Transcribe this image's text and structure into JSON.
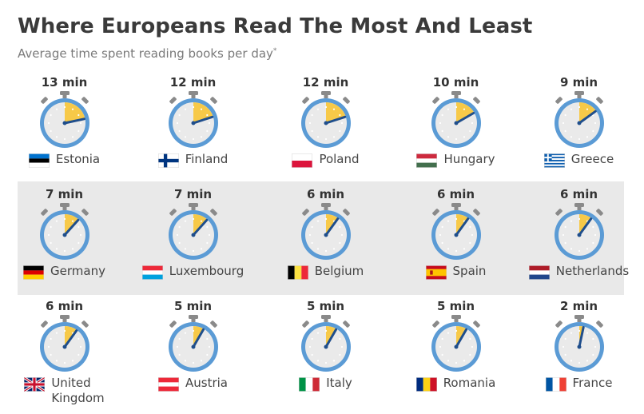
{
  "header": {
    "title": "Where Europeans Read The Most And Least",
    "subtitle": "Average time spent reading books per day",
    "footnote_mark": "*"
  },
  "colors": {
    "watch_ring": "#5b9bd5",
    "watch_face": "#eaeaea",
    "wedge": "#f7c948",
    "hand": "#1f4e8c",
    "band": "#e9e9e9"
  },
  "chart_data": {
    "type": "table",
    "title": "Where Europeans Read The Most And Least",
    "subtitle": "Average time spent reading books per day",
    "unit": "min",
    "rows": [
      {
        "country": "Estonia",
        "minutes": 13,
        "label": "13 min"
      },
      {
        "country": "Finland",
        "minutes": 12,
        "label": "12 min"
      },
      {
        "country": "Poland",
        "minutes": 12,
        "label": "12 min"
      },
      {
        "country": "Hungary",
        "minutes": 10,
        "label": "10 min"
      },
      {
        "country": "Greece",
        "minutes": 9,
        "label": "9 min"
      },
      {
        "country": "Germany",
        "minutes": 7,
        "label": "7 min"
      },
      {
        "country": "Luxembourg",
        "minutes": 7,
        "label": "7 min"
      },
      {
        "country": "Belgium",
        "minutes": 6,
        "label": "6 min"
      },
      {
        "country": "Spain",
        "minutes": 6,
        "label": "6 min"
      },
      {
        "country": "Netherlands",
        "minutes": 6,
        "label": "6 min"
      },
      {
        "country": "United Kingdom",
        "minutes": 6,
        "label": "6 min"
      },
      {
        "country": "Austria",
        "minutes": 5,
        "label": "5 min"
      },
      {
        "country": "Italy",
        "minutes": 5,
        "label": "5 min"
      },
      {
        "country": "Romania",
        "minutes": 5,
        "label": "5 min"
      },
      {
        "country": "France",
        "minutes": 2,
        "label": "2 min"
      }
    ]
  }
}
